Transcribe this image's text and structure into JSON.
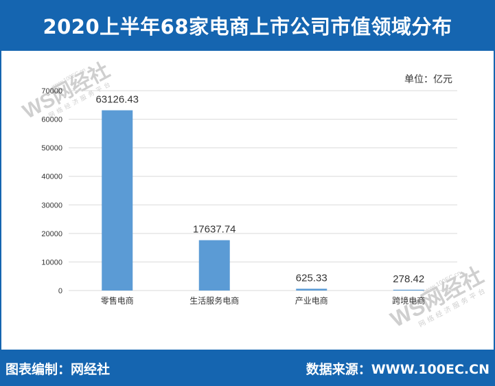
{
  "header": {
    "title": "2020上半年68家电商上市公司市值领域分布"
  },
  "unit": {
    "label": "单位：亿元"
  },
  "footer": {
    "left": "图表编制：网经社",
    "right": "数据来源：WWW.100EC.CN"
  },
  "watermark": {
    "logo": "WS网经社",
    "url": "www.100EC.cn",
    "tagline": "网络经济服务平台"
  },
  "colors": {
    "brand": "#1565b0",
    "bar": "#5b9bd5",
    "grid": "#d9d9d9"
  },
  "chart_data": {
    "type": "bar",
    "title": "",
    "xlabel": "",
    "ylabel": "",
    "categories": [
      "零售电商",
      "生活服务电商",
      "产业电商",
      "跨境电商"
    ],
    "values": [
      63126.43,
      17637.74,
      625.33,
      278.42
    ],
    "data_labels": [
      "63126.43",
      "17637.74",
      "625.33",
      "278.42"
    ],
    "ylim": [
      0,
      70000
    ],
    "yticks": [
      0,
      10000,
      20000,
      30000,
      40000,
      50000,
      60000,
      70000
    ],
    "grid": true,
    "legend": "none"
  }
}
